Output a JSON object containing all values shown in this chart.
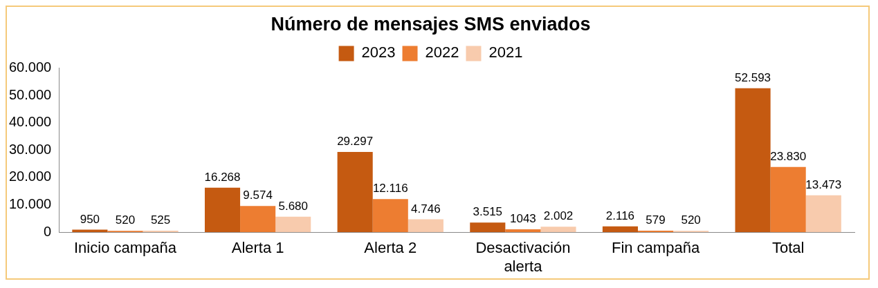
{
  "chart_data": {
    "type": "bar",
    "title": "Número de mensajes SMS enviados",
    "categories": [
      "Inicio campaña",
      "Alerta 1",
      "Alerta 2",
      "Desactivación alerta",
      "Fin campaña",
      "Total"
    ],
    "series": [
      {
        "name": "2023",
        "color": "#c55a11",
        "values": [
          950,
          16268,
          29297,
          3515,
          2116,
          52593
        ],
        "value_labels": [
          "950",
          "16.268",
          "29.297",
          "3.515",
          "2.116",
          "52.593"
        ]
      },
      {
        "name": "2022",
        "color": "#ed7d31",
        "values": [
          520,
          9574,
          12116,
          1043,
          579,
          23830
        ],
        "value_labels": [
          "520",
          "9.574",
          "12.116",
          "1043",
          "579",
          "23.830"
        ]
      },
      {
        "name": "2021",
        "color": "#f8cbad",
        "values": [
          525,
          5680,
          4746,
          2002,
          520,
          13473
        ],
        "value_labels": [
          "525",
          "5.680",
          "4.746",
          "2.002",
          "520",
          "13.473"
        ]
      }
    ],
    "ylim": [
      0,
      60000
    ],
    "yticks": [
      {
        "value": 0,
        "label": "0"
      },
      {
        "value": 10000,
        "label": "10.000"
      },
      {
        "value": 20000,
        "label": "20.000"
      },
      {
        "value": 30000,
        "label": "30.000"
      },
      {
        "value": 40000,
        "label": "40.000"
      },
      {
        "value": 50000,
        "label": "50.000"
      },
      {
        "value": 60000,
        "label": "60.000"
      }
    ],
    "grid": false,
    "legend": "top"
  }
}
